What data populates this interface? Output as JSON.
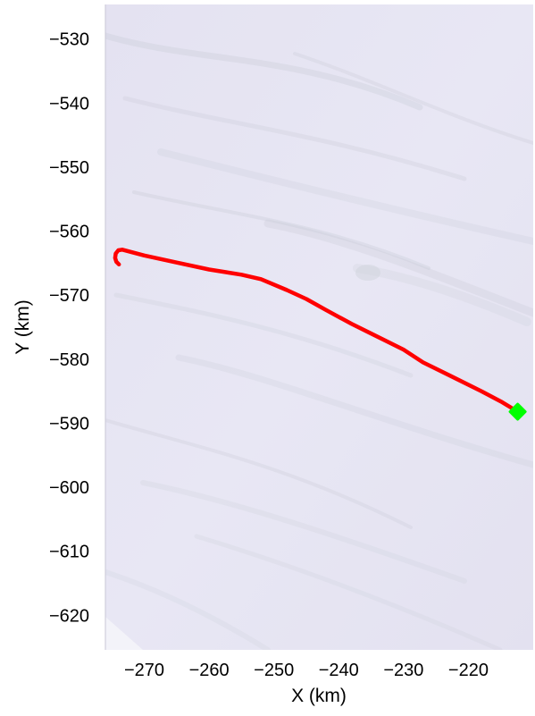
{
  "chart_data": {
    "type": "line",
    "title": "",
    "xlabel": "X (km)",
    "ylabel": "Y (km)",
    "xlim": [
      -276,
      -210
    ],
    "ylim": [
      -625.4,
      -524.6
    ],
    "x_ticks": [
      -270,
      -260,
      -250,
      -240,
      -230,
      -220
    ],
    "y_ticks": [
      -530,
      -540,
      -550,
      -560,
      -570,
      -580,
      -590,
      -600,
      -610,
      -620
    ],
    "grid": false,
    "legend": "none",
    "background": "satellite ice imagery (pale lavender/white with faint streaks)",
    "series": [
      {
        "color": "#ff0000",
        "x": [
          -273.9,
          -274.3,
          -274.5,
          -274.4,
          -274.0,
          -273.4,
          -270.0,
          -265.0,
          -260.0,
          -255.0,
          -252.0,
          -248.0,
          -245.0,
          -242.0,
          -238.0,
          -235.0,
          -230.0,
          -227.0,
          -223.0,
          -218.0,
          -215.0,
          -212.4
        ],
        "y": [
          -565.2,
          -564.8,
          -564.2,
          -563.5,
          -563.0,
          -562.9,
          -563.8,
          -564.9,
          -566.0,
          -566.8,
          -567.5,
          -569.2,
          -570.6,
          -572.3,
          -574.5,
          -576.0,
          -578.5,
          -580.5,
          -582.5,
          -585.0,
          -586.6,
          -588.2
        ]
      }
    ],
    "markers": [
      {
        "x": -212.4,
        "y": -588.2,
        "color": "#00ff00",
        "shape": "diamond"
      }
    ]
  }
}
